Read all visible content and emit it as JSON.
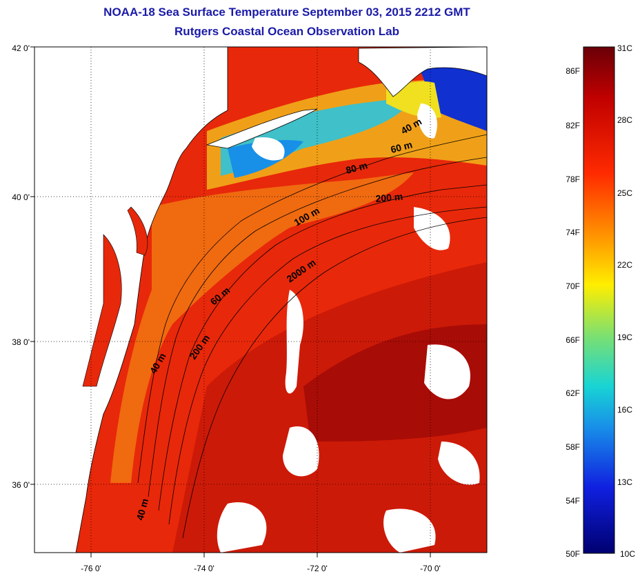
{
  "title": {
    "line1": "NOAA-18 Sea Surface Temperature September 03, 2015 2212 GMT",
    "line2": "Rutgers Coastal Ocean Observation Lab"
  },
  "map": {
    "lat_ticks": [
      "42 0'",
      "40 0'",
      "38 0'",
      "36 0'"
    ],
    "lon_ticks": [
      "-76 0'",
      "-74 0'",
      "-72 0'",
      "-70 0'"
    ],
    "contour_labels": [
      "40 m",
      "60 m",
      "80 m",
      "200 m",
      "100 m",
      "2000 m",
      "60 m",
      "200 m",
      "40 m",
      "40 m"
    ]
  },
  "colorbar": {
    "fahrenheit": [
      "86F",
      "82F",
      "78F",
      "74F",
      "70F",
      "66F",
      "62F",
      "58F",
      "54F",
      "50F"
    ],
    "celsius": [
      "31C",
      "28C",
      "25C",
      "22C",
      "19C",
      "16C",
      "13C",
      "10C"
    ]
  },
  "colors": {
    "title": "#1a1aa8",
    "warm": "#e8280a",
    "hot": "#b81008",
    "cool": "#28b4e0",
    "cold": "#0a2ad0"
  }
}
